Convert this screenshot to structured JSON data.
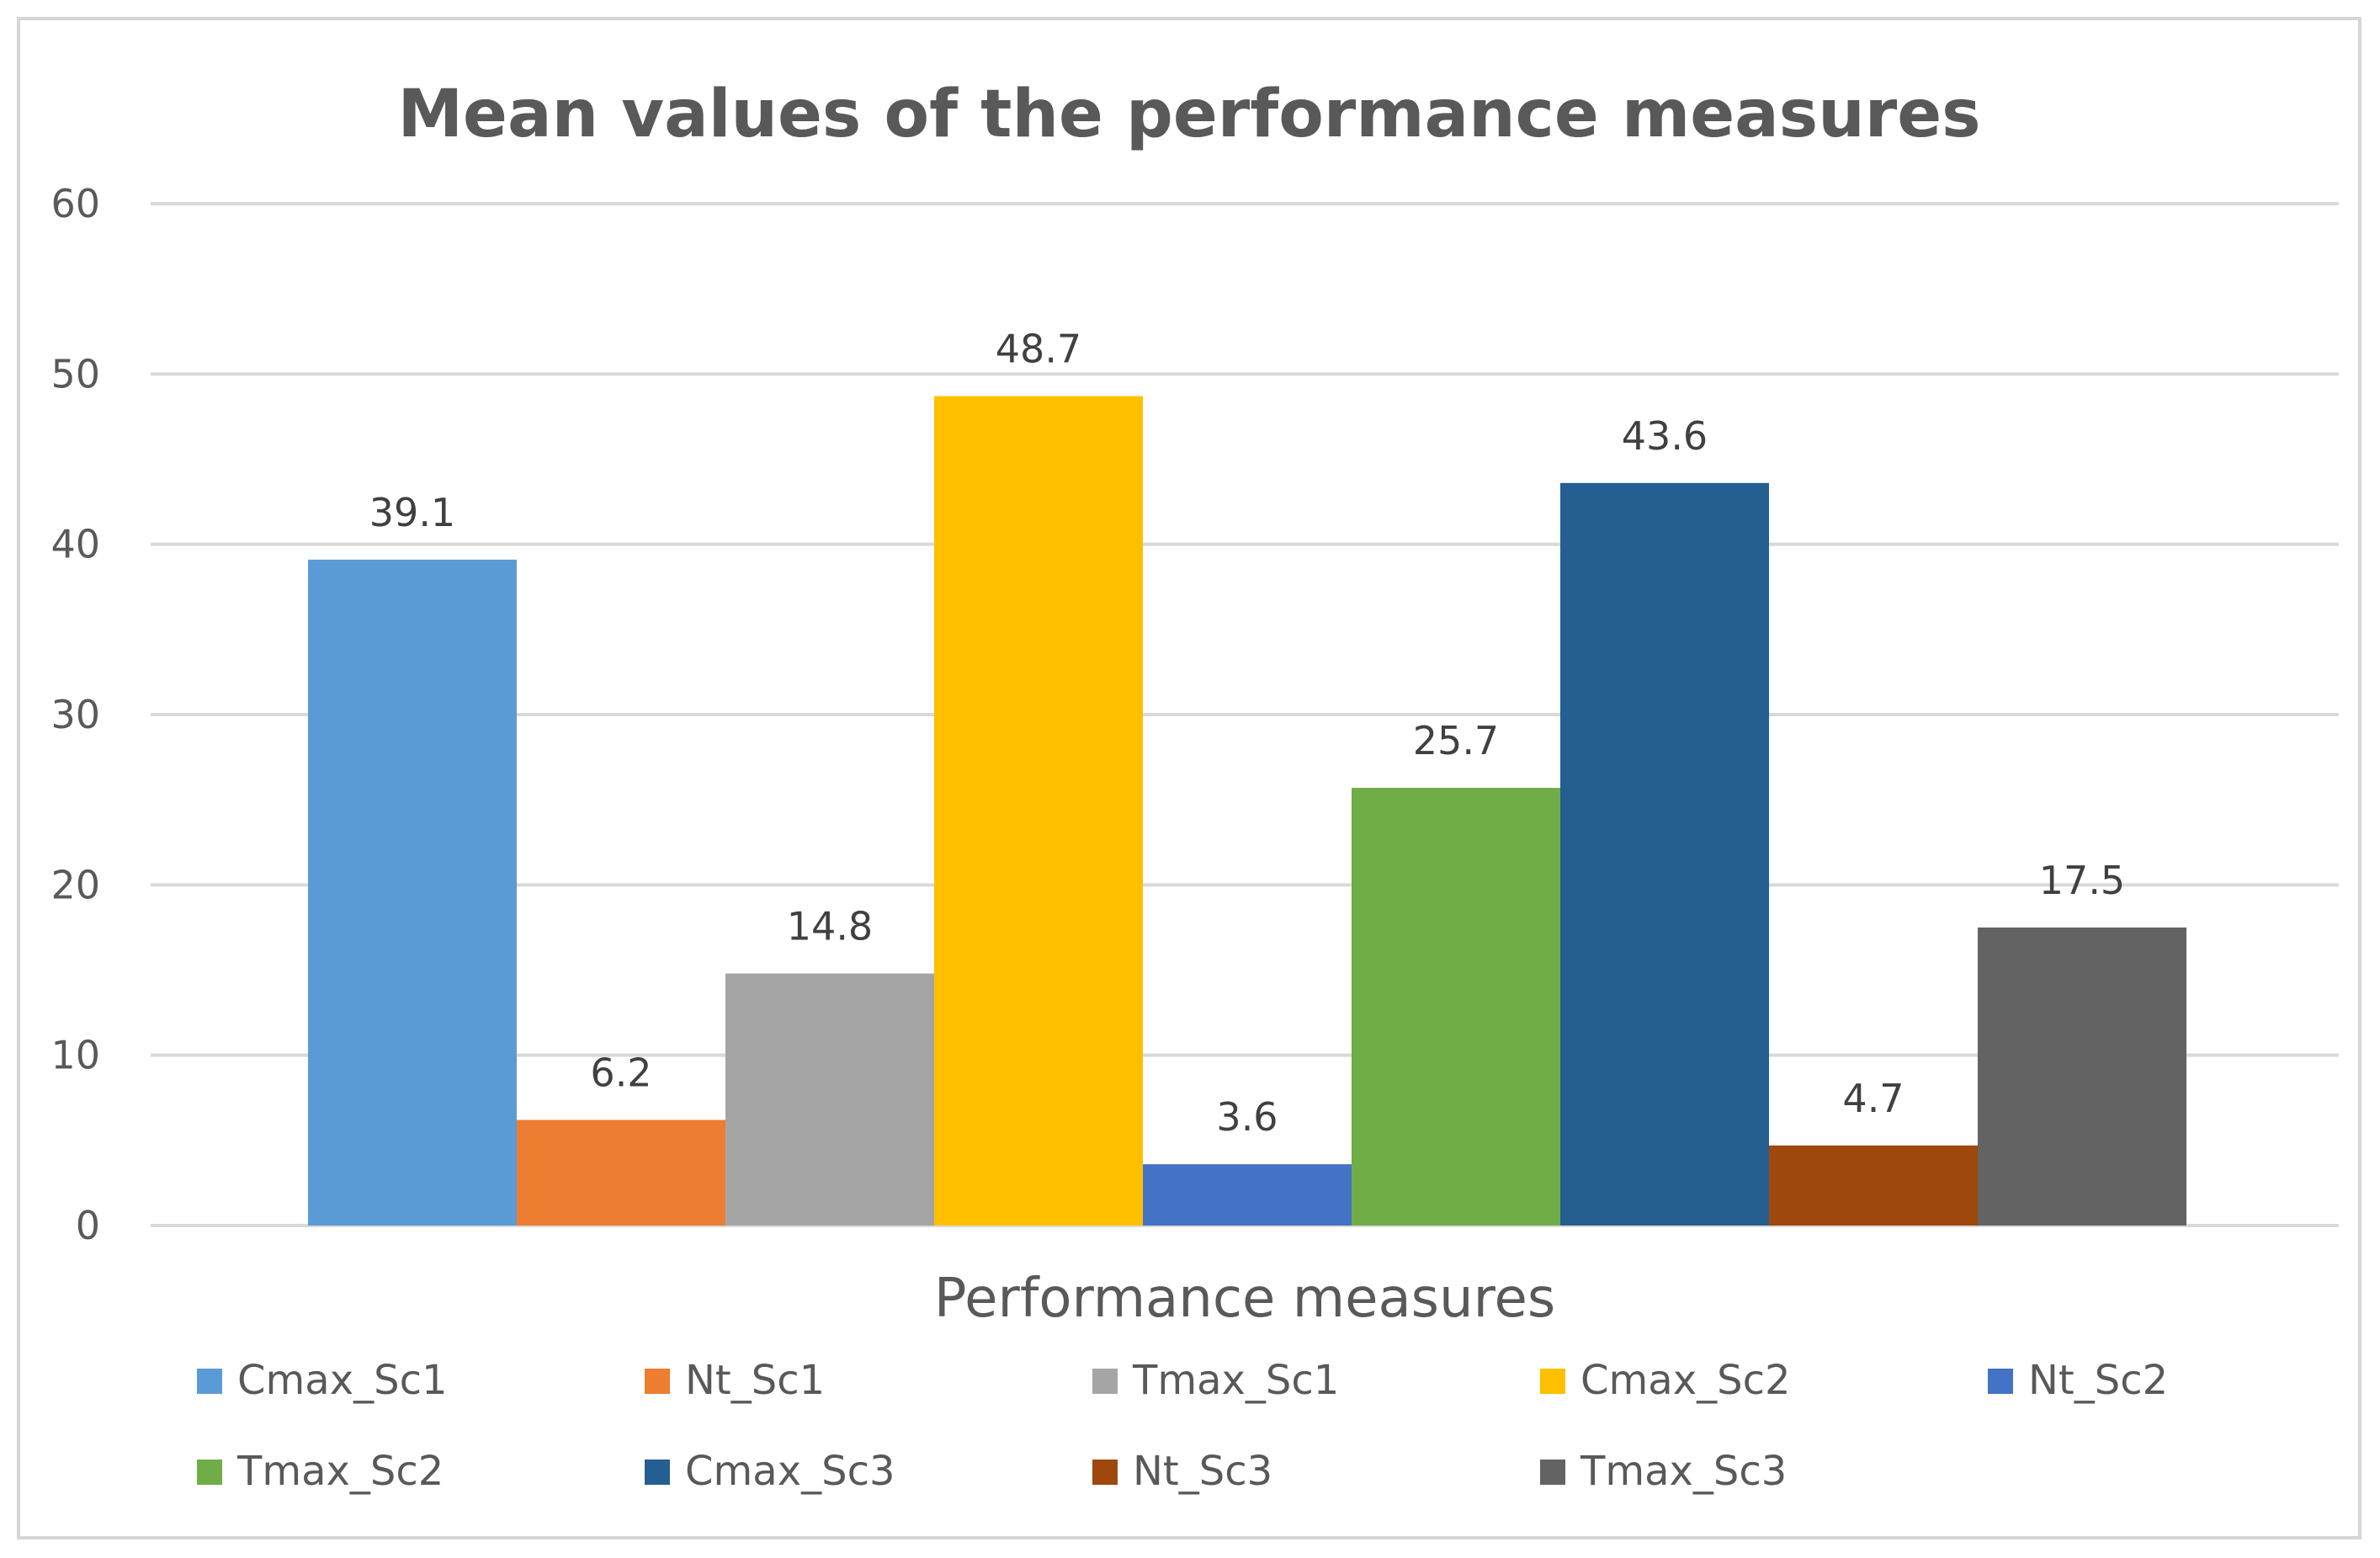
{
  "chart_data": {
    "type": "bar",
    "title": "Mean values of the performance measures",
    "xlabel": "Performance measures",
    "ylabel": "",
    "ylim": [
      0,
      60
    ],
    "yticks": [
      0,
      10,
      20,
      30,
      40,
      50,
      60
    ],
    "grid": true,
    "legend_position": "bottom",
    "series": [
      {
        "name": "Cmax_Sc1",
        "value": 39.1,
        "label": "39.1",
        "color": "#5B9BD5"
      },
      {
        "name": "Nt_Sc1",
        "value": 6.2,
        "label": "6.2",
        "color": "#ED7D31"
      },
      {
        "name": "Tmax_Sc1",
        "value": 14.8,
        "label": "14.8",
        "color": "#A5A5A5"
      },
      {
        "name": "Cmax_Sc2",
        "value": 48.7,
        "label": "48.7",
        "color": "#FFC000"
      },
      {
        "name": "Nt_Sc2",
        "value": 3.6,
        "label": "3.6",
        "color": "#4472C4"
      },
      {
        "name": "Tmax_Sc2",
        "value": 25.7,
        "label": "25.7",
        "color": "#70AD47"
      },
      {
        "name": "Cmax_Sc3",
        "value": 43.6,
        "label": "43.6",
        "color": "#255E91"
      },
      {
        "name": "Nt_Sc3",
        "value": 4.7,
        "label": "4.7",
        "color": "#9E480E"
      },
      {
        "name": "Tmax_Sc3",
        "value": 17.5,
        "label": "17.5",
        "color": "#636363"
      }
    ]
  }
}
